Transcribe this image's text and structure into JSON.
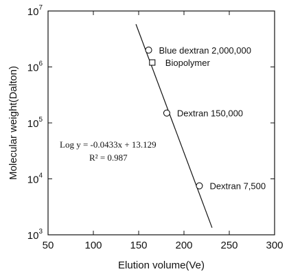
{
  "chart_data": {
    "type": "scatter",
    "xlabel": "Elution volume(Ve)",
    "ylabel": "Molecular weight(Dalton)",
    "xlim": [
      50,
      300
    ],
    "ylim": [
      1000,
      10000000
    ],
    "yscale": "log",
    "x_ticks": [
      "50",
      "100",
      "150",
      "200",
      "250",
      "300"
    ],
    "y_ticks": [
      {
        "base": "10",
        "exp": "3"
      },
      {
        "base": "10",
        "exp": "4"
      },
      {
        "base": "10",
        "exp": "5"
      },
      {
        "base": "10",
        "exp": "6"
      },
      {
        "base": "10",
        "exp": "7"
      }
    ],
    "points": [
      {
        "label": "Blue dextran 2,000,000",
        "x": 161,
        "y": 2000000,
        "marker": "circle"
      },
      {
        "label": "Biopolymer",
        "x": 165,
        "y": 1200000,
        "marker": "square"
      },
      {
        "label": "Dextran 150,000",
        "x": 181,
        "y": 150000,
        "marker": "circle"
      },
      {
        "label": "Dextran 7,500",
        "x": 217,
        "y": 7500,
        "marker": "circle"
      }
    ],
    "fit": {
      "equation": "Log y = -0.0433x + 13.129",
      "r2_label": "R² = 0.987",
      "slope": -0.0433,
      "intercept": 13.129,
      "x_range": [
        147,
        231
      ]
    },
    "grid": false
  }
}
